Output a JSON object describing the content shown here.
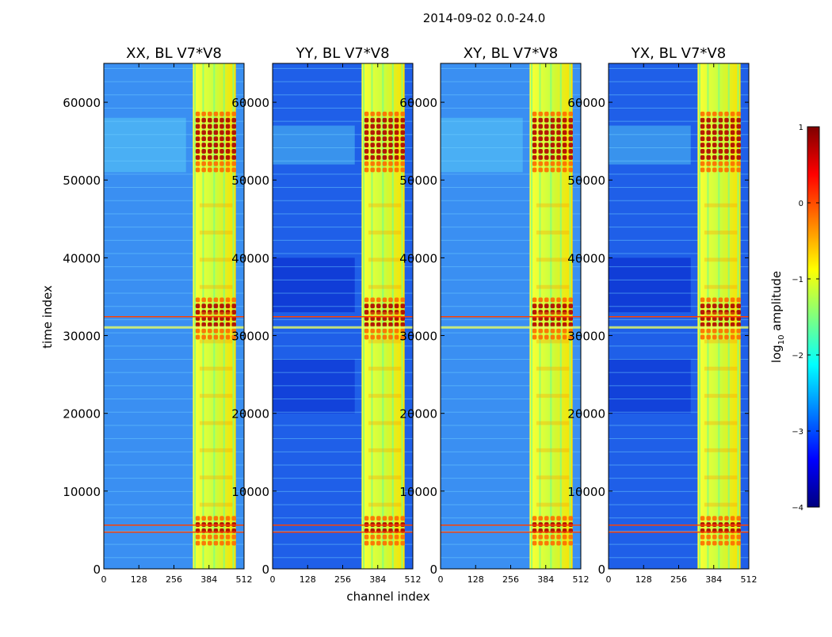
{
  "chart_data": {
    "type": "heatmap",
    "suptitle": "2014-09-02 0.0-24.0",
    "xlabel": "channel index",
    "ylabel": "time index",
    "x_ticks": [
      "0",
      "128",
      "256",
      "384",
      "512"
    ],
    "x_tick_values": [
      0,
      128,
      256,
      384,
      512
    ],
    "y_ticks": [
      "0",
      "10000",
      "20000",
      "30000",
      "40000",
      "50000",
      "60000"
    ],
    "y_tick_values": [
      0,
      10000,
      20000,
      30000,
      40000,
      50000,
      60000
    ],
    "xlim": [
      0,
      512
    ],
    "ylim": [
      0,
      65000
    ],
    "colorbar": {
      "label_prefix": "log",
      "label_sub": "10",
      "label_suffix": " amplitude",
      "ticks": [
        "1",
        "0",
        "−1",
        "−2",
        "−3",
        "−4"
      ],
      "tick_values": [
        1,
        0,
        -1,
        -2,
        -3,
        -4
      ],
      "range": [
        -4,
        1
      ],
      "colormap": [
        "#00007f",
        "#0000ff",
        "#007fff",
        "#00ffff",
        "#7fff7f",
        "#ffff00",
        "#ff7f00",
        "#ff0000",
        "#7f0000"
      ]
    },
    "panels": [
      {
        "title": "XX, BL V7*V8",
        "background": "#3a8ff2",
        "left_level": "medium"
      },
      {
        "title": "YY, BL V7*V8",
        "background": "#1f5fe8",
        "left_level": "low"
      },
      {
        "title": "XY, BL V7*V8",
        "background": "#3a8ff2",
        "left_level": "medium"
      },
      {
        "title": "YX, BL V7*V8",
        "background": "#1f5fe8",
        "left_level": "low"
      }
    ]
  }
}
